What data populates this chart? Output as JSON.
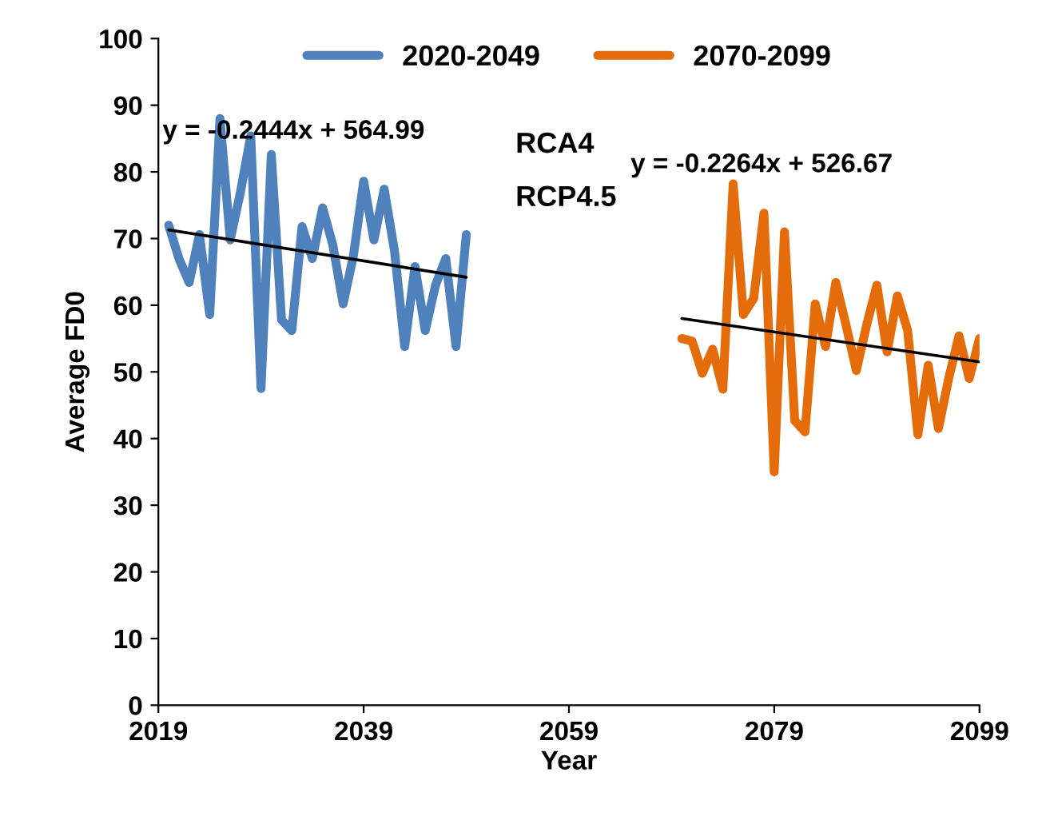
{
  "chart_data": {
    "type": "line",
    "xlabel": "Year",
    "ylabel": "Average FD0",
    "xlim": [
      2019,
      2099
    ],
    "xticks": [
      2019,
      2039,
      2059,
      2079,
      2099
    ],
    "ylim": [
      0,
      100
    ],
    "yticks": [
      0,
      10,
      20,
      30,
      40,
      50,
      60,
      70,
      80,
      90,
      100
    ],
    "grid": false,
    "legend": "top",
    "line_style": "solid",
    "marker": "none",
    "annotations": [
      "y = -0.2444x + 564.99",
      "RCA4",
      "RCP4.5",
      "y = -0.2264x + 526.67"
    ],
    "series": [
      {
        "name": "2020-2049",
        "color": "#4f81bd",
        "x": [
          2020,
          2021,
          2022,
          2023,
          2024,
          2025,
          2026,
          2027,
          2028,
          2029,
          2030,
          2031,
          2032,
          2033,
          2034,
          2035,
          2036,
          2037,
          2038,
          2039,
          2040,
          2041,
          2042,
          2043,
          2044,
          2045,
          2046,
          2047,
          2048,
          2049
        ],
        "values": [
          72,
          67,
          63.4,
          70.6,
          58.6,
          88,
          69.8,
          77,
          85.4,
          47.5,
          82.6,
          57.8,
          56.2,
          71.8,
          67,
          74.6,
          69,
          60.2,
          67.4,
          78.6,
          69.8,
          77.4,
          68.2,
          53.8,
          65.8,
          56.2,
          63,
          67,
          53.8,
          70.6
        ]
      },
      {
        "name": "2070-2099",
        "color": "#e46c0a",
        "x": [
          2070,
          2071,
          2072,
          2073,
          2074,
          2075,
          2076,
          2077,
          2078,
          2079,
          2080,
          2081,
          2082,
          2083,
          2084,
          2085,
          2086,
          2087,
          2088,
          2089,
          2090,
          2091,
          2092,
          2093,
          2094,
          2095,
          2096,
          2097,
          2098,
          2099
        ],
        "values": [
          55,
          54.6,
          49.8,
          53.4,
          47.4,
          78.2,
          58.6,
          61,
          73.8,
          35,
          71,
          42.7,
          41,
          60.2,
          53.8,
          63.4,
          57,
          50.2,
          57,
          63,
          53,
          61.4,
          56.2,
          40.6,
          51,
          41.5,
          49,
          55.4,
          49,
          55
        ]
      },
      {
        "type": "line",
        "color": "#000000",
        "x": [
          2020,
          2049
        ],
        "values": [
          71.3,
          64.2
        ]
      },
      {
        "type": "line",
        "color": "#000000",
        "x": [
          2070,
          2099
        ],
        "values": [
          58.0,
          51.5
        ]
      }
    ]
  }
}
